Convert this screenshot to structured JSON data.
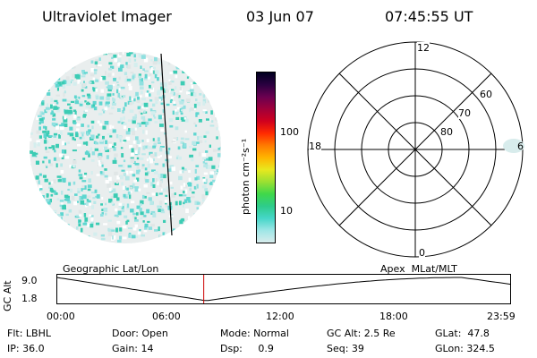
{
  "header": {
    "instrument": "Ultraviolet Imager",
    "date": "03 Jun 07",
    "time": "07:45:55 UT"
  },
  "colorbar": {
    "label": "photon cm⁻²s⁻¹",
    "ticks": [
      "100",
      "10"
    ],
    "colors": [
      "#d8ecec",
      "#9ee6e6",
      "#45d6c8",
      "#2ecc8a",
      "#3fd84a",
      "#9be032",
      "#e8e81e",
      "#ffb400",
      "#ff7a00",
      "#ff2a00",
      "#d0001e",
      "#a0003a",
      "#6a0050",
      "#2a0040",
      "#000020"
    ]
  },
  "polar": {
    "labels": {
      "top": "12",
      "left": "18",
      "right": "6",
      "bottom": "0"
    },
    "lat_labels": [
      "60",
      "70",
      "80"
    ]
  },
  "altitude_panel": {
    "left_title": "Geographic Lat/Lon",
    "right_title": "Apex  MLat/MLT",
    "axis_label": "GC Alt",
    "y_ticks": [
      "9.0",
      "1.8"
    ],
    "x_ticks": [
      "00:00",
      "06:00",
      "12:00",
      "18:00",
      "23:59"
    ],
    "current_hour": 7.77,
    "marker_color": "#cc0000"
  },
  "info": {
    "flt": "Flt: LBHL",
    "door": "Door: Open",
    "mode": "Mode: Normal",
    "gcalt": "GC Alt: 2.5 Re",
    "glat": "GLat:  47.8",
    "ip": "IP: 36.0",
    "gain": "Gain: 14",
    "dsp": "Dsp:     0.9",
    "seq": "Seq: 39",
    "glon": "GLon: 324.5"
  }
}
